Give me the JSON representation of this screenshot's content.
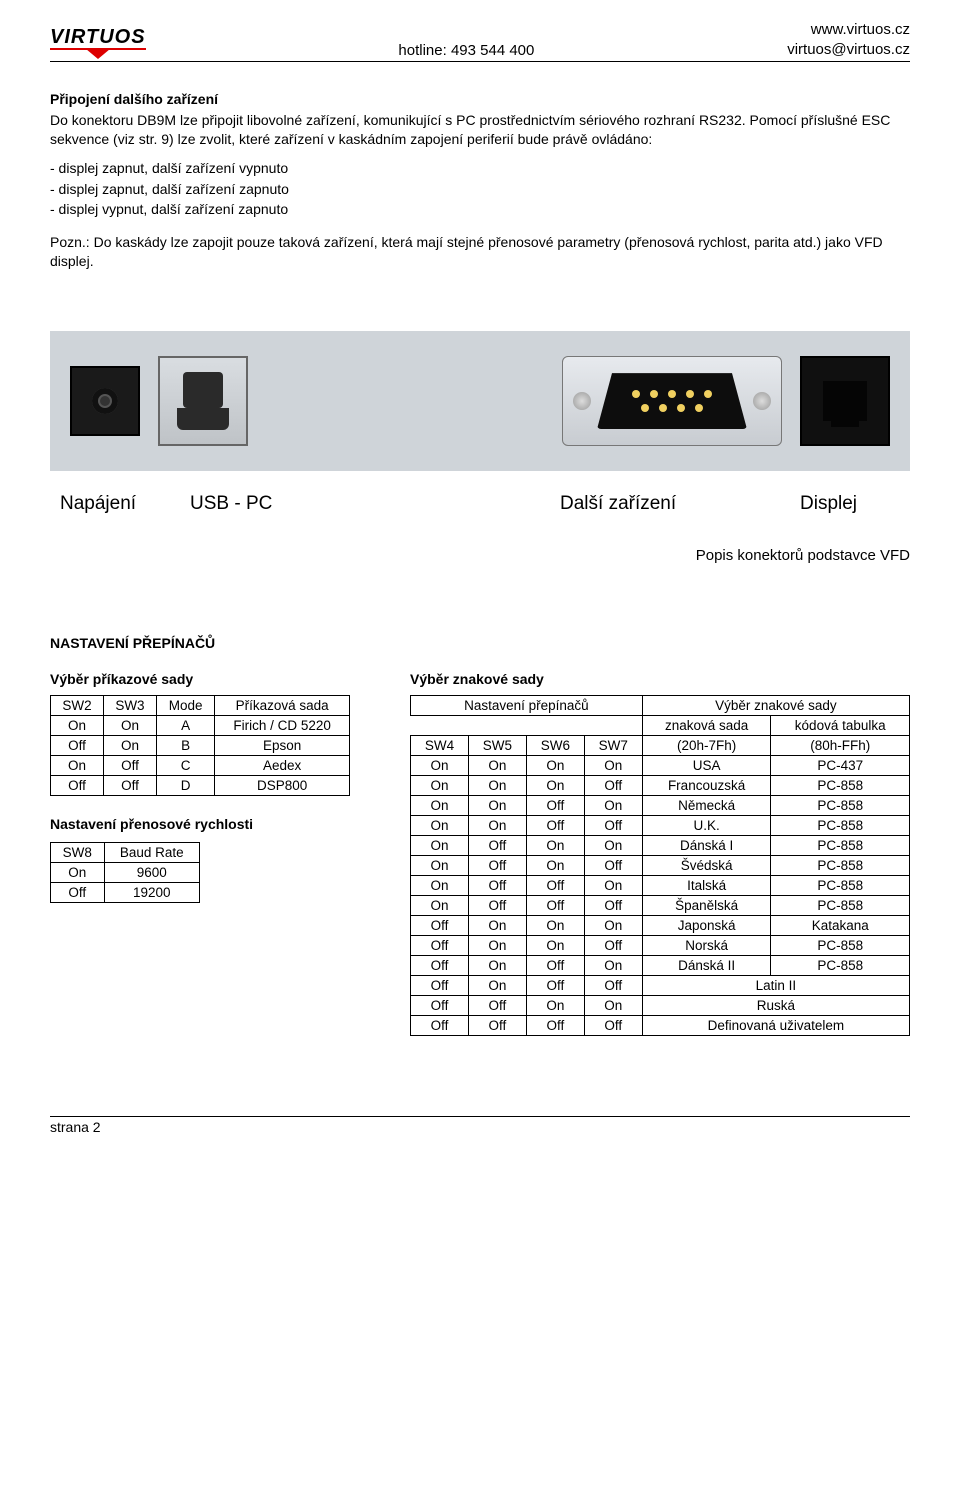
{
  "header": {
    "logo_text": "VIRTUOS",
    "hotline": "hotline: 493 544 400",
    "url": "www.virtuos.cz",
    "email": "virtuos@virtuos.cz"
  },
  "sec1": {
    "title": "Připojení dalšího zařízení",
    "p1": "Do konektoru DB9M lze připojit libovolné zařízení, komunikující s PC prostřednictvím sériového rozhraní RS232. Pomocí příslušné  ESC sekvence (viz str. 9) lze zvolit, které zařízení v kaskádním zapojení periferií bude právě ovládáno:",
    "b1": "- displej zapnut, další zařízení vypnuto",
    "b2": "- displej zapnut, další zařízení zapnuto",
    "b3": "- displej vypnut, další zařízení zapnuto",
    "note": "Pozn.: Do kaskády lze zapojit pouze taková zařízení, která mají stejné přenosové parametry (přenosová rychlost, parita atd.) jako VFD displej."
  },
  "labels": {
    "l1": "Napájení",
    "l2": "USB - PC",
    "l3": "Další zařízení",
    "l4": "Displej"
  },
  "caption": "Popis konektorů podstavce VFD",
  "switches": {
    "title": "NASTAVENÍ PŘEPÍNAČŮ",
    "left_head": "Výběr příkazové sady",
    "right_head": "Výběr znakové sady",
    "cmd_table": {
      "cols": [
        "SW2",
        "SW3",
        "Mode",
        "Příkazová sada"
      ],
      "rows": [
        [
          "On",
          "On",
          "A",
          "Firich / CD 5220"
        ],
        [
          "Off",
          "On",
          "B",
          "Epson"
        ],
        [
          "On",
          "Off",
          "C",
          "Aedex"
        ],
        [
          "Off",
          "Off",
          "D",
          "DSP800"
        ]
      ]
    },
    "baud_title": "Nastavení přenosové rychlosti",
    "baud_table": {
      "cols": [
        "SW8",
        "Baud Rate"
      ],
      "rows": [
        [
          "On",
          "9600"
        ],
        [
          "Off",
          "19200"
        ]
      ]
    },
    "char_table": {
      "head1": "Nastavení přepínačů",
      "head2": "Výběr znakové sady",
      "sub_charset": "znaková sada",
      "sub_codepage": "kódová tabulka",
      "swcols": [
        "SW4",
        "SW5",
        "SW6",
        "SW7"
      ],
      "charset_hint": "(20h-7Fh)",
      "codepage_hint": "(80h-FFh)",
      "rows": [
        [
          "On",
          "On",
          "On",
          "On",
          "USA",
          "PC-437"
        ],
        [
          "On",
          "On",
          "On",
          "Off",
          "Francouzská",
          "PC-858"
        ],
        [
          "On",
          "On",
          "Off",
          "On",
          "Německá",
          "PC-858"
        ],
        [
          "On",
          "On",
          "Off",
          "Off",
          "U.K.",
          "PC-858"
        ],
        [
          "On",
          "Off",
          "On",
          "On",
          "Dánská I",
          "PC-858"
        ],
        [
          "On",
          "Off",
          "On",
          "Off",
          "Švédská",
          "PC-858"
        ],
        [
          "On",
          "Off",
          "Off",
          "On",
          "Italská",
          "PC-858"
        ],
        [
          "On",
          "Off",
          "Off",
          "Off",
          "Španělská",
          "PC-858"
        ],
        [
          "Off",
          "On",
          "On",
          "On",
          "Japonská",
          "Katakana"
        ],
        [
          "Off",
          "On",
          "On",
          "Off",
          "Norská",
          "PC-858"
        ],
        [
          "Off",
          "On",
          "Off",
          "On",
          "Dánská II",
          "PC-858"
        ]
      ],
      "rows_merged": [
        [
          "Off",
          "On",
          "Off",
          "Off",
          "Latin II"
        ],
        [
          "Off",
          "Off",
          "On",
          "On",
          "Ruská"
        ],
        [
          "Off",
          "Off",
          "Off",
          "Off",
          "Definovaná uživatelem"
        ]
      ]
    }
  },
  "footer": "strana 2"
}
